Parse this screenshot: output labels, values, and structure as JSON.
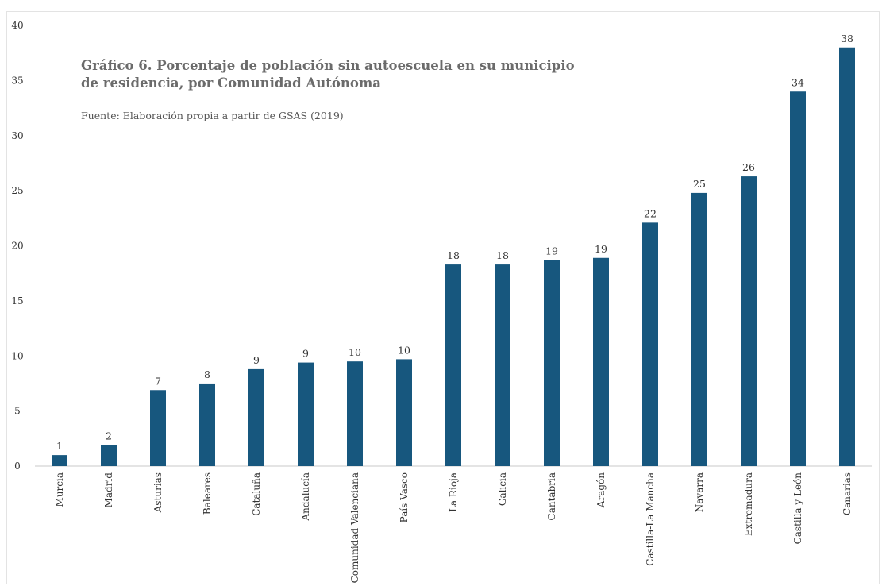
{
  "chart_data": {
    "type": "bar",
    "title": "Gráfico 6. Porcentaje de población sin autoescuela en su municipio de residencia, por Comunidad Autónoma",
    "source": "Fuente: Elaboración propia a partir de GSAS (2019)",
    "categories": [
      "Murcia",
      "Madrid",
      "Asturias",
      "Baleares",
      "Cataluña",
      "Andalucía",
      "Comunidad Valenciana",
      "País Vasco",
      "La Rioja",
      "Galicia",
      "Cantabria",
      "Aragón",
      "Castilla-La Mancha",
      "Navarra",
      "Extremadura",
      "Castilla y León",
      "Canarias"
    ],
    "values": [
      1.0,
      1.9,
      6.9,
      7.5,
      8.8,
      9.4,
      9.5,
      9.7,
      18.3,
      18.3,
      18.7,
      18.9,
      22.1,
      24.8,
      26.3,
      34.0,
      38.0
    ],
    "value_labels": [
      "1",
      "2",
      "7",
      "8",
      "9",
      "9",
      "10",
      "10",
      "18",
      "18",
      "19",
      "19",
      "22",
      "25",
      "26",
      "34",
      "38"
    ],
    "ylim": [
      0,
      40
    ],
    "yticks": [
      0,
      5,
      10,
      15,
      20,
      25,
      30,
      35,
      40
    ],
    "xlabel": "",
    "ylabel": "",
    "grid": false,
    "colors": {
      "bar": "#17577e",
      "axis": "#c8c8c8",
      "text": "#333333"
    }
  }
}
